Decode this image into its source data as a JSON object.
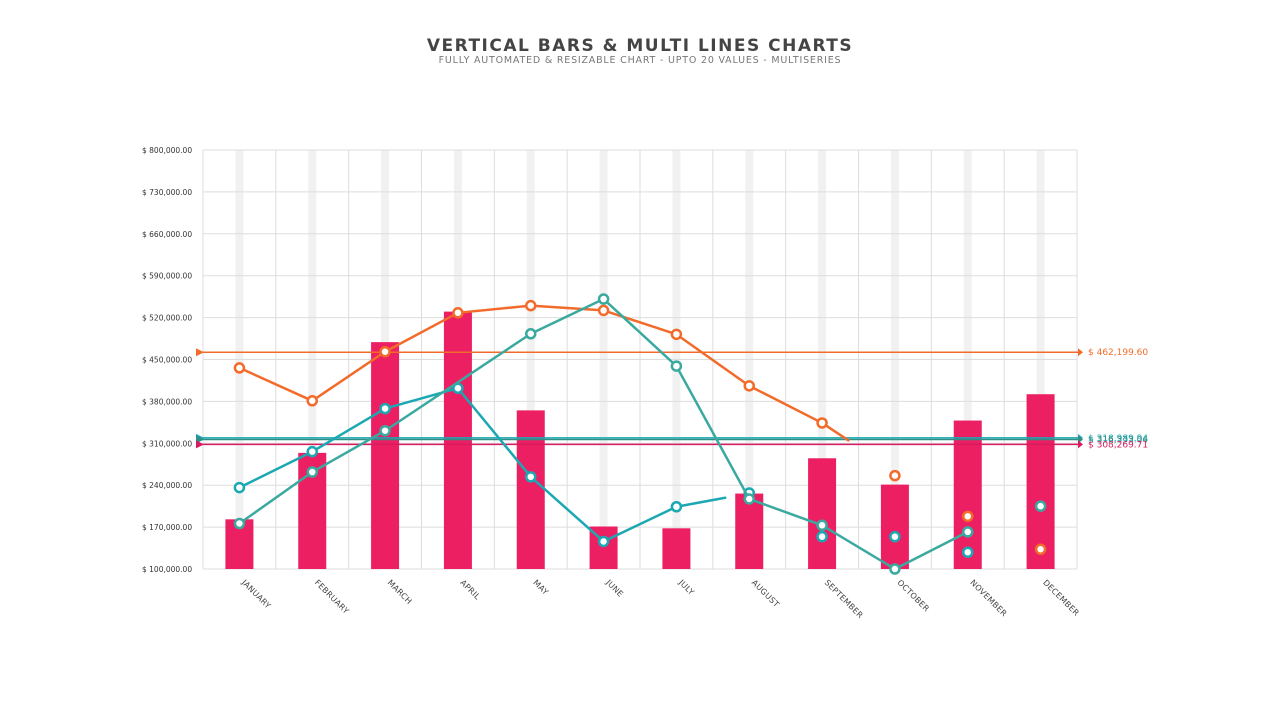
{
  "header": {
    "title": "VERTICAL BARS & MULTI LINES CHARTS",
    "subtitle": "FULLY AUTOMATED & RESIZABLE CHART - UPTO 20 VALUES - MULTISERIES"
  },
  "chart_data": {
    "type": "bar",
    "title": "VERTICAL BARS & MULTI LINES CHARTS",
    "subtitle": "FULLY AUTOMATED & RESIZABLE CHART - UPTO 20 VALUES - MULTISERIES",
    "categories": [
      "JANUARY",
      "FEBRUARY",
      "MARCH",
      "APRIL",
      "MAY",
      "JUNE",
      "JULY",
      "AUGUST",
      "SEPTEMBER",
      "OCTOBER",
      "NOVEMBER",
      "DECEMBER"
    ],
    "ylim": [
      100000,
      800000
    ],
    "yticks": [
      100000,
      170000,
      240000,
      310000,
      380000,
      450000,
      520000,
      590000,
      660000,
      730000,
      800000
    ],
    "ytick_labels": [
      "$ 100,000.00",
      "$ 170,000.00",
      "$ 240,000.00",
      "$ 310,000.00",
      "$ 380,000.00",
      "$ 450,000.00",
      "$ 520,000.00",
      "$ 590,000.00",
      "$ 660,000.00",
      "$ 730,000.00",
      "$ 800,000.00"
    ],
    "grid": true,
    "bars": {
      "color": "#ec1f63",
      "values": [
        183000,
        294000,
        479000,
        530000,
        365000,
        171000,
        168000,
        226000,
        285000,
        241000,
        348000,
        392000
      ]
    },
    "series": [
      {
        "color": "#f26b2a",
        "values": [
          436000,
          381000,
          463000,
          528000,
          540000,
          532000,
          492000,
          406000,
          344000,
          256000,
          188000,
          133000
        ],
        "draw_line_until_index": 8,
        "partial_segment_end": [
          8.36,
          315000
        ]
      },
      {
        "color": "#1ba8b3",
        "values": [
          236000,
          296000,
          368000,
          402000,
          254000,
          146000,
          204000,
          227000,
          154000,
          154000,
          128000,
          null
        ],
        "draw_line_until_index": 6,
        "partial_segment_end": [
          6.67,
          219000
        ]
      },
      {
        "color": "#3aa99f",
        "values": [
          176000,
          262000,
          331000,
          null,
          493000,
          551000,
          439000,
          217000,
          173000,
          100000,
          162000,
          205000
        ],
        "draw_line_until_index": 10,
        "skip_marker_indices": [
          3
        ]
      }
    ],
    "reference_lines": [
      {
        "value": 462199.6,
        "label": "$ 462,199.60",
        "color": "#f26b2a"
      },
      {
        "value": 318989.94,
        "label": "$ 318,989.94",
        "color": "#1ba8b3"
      },
      {
        "value": 316333.04,
        "label": "$ 316,333.04",
        "color": "#2f8f86"
      },
      {
        "value": 308269.71,
        "label": "$ 308,269.71",
        "color": "#d81b5e"
      }
    ]
  }
}
